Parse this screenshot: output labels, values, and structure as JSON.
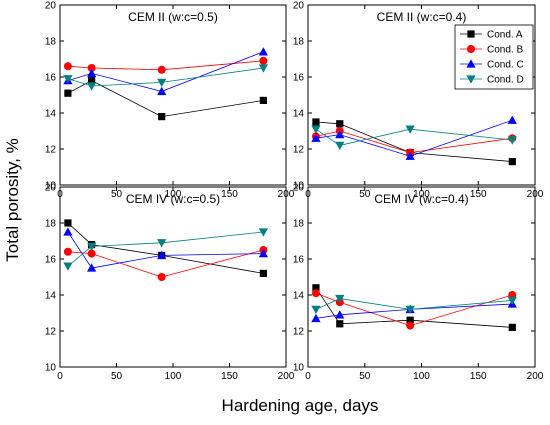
{
  "figure": {
    "ylabel": "Total porosity, %",
    "xlabel": "Hardening age, days"
  },
  "chart_data": [
    {
      "type": "line",
      "title": "CEM II (w:c=0.5)",
      "x": [
        7,
        28,
        90,
        180
      ],
      "xlim": [
        0,
        200
      ],
      "ylim": [
        10,
        20
      ],
      "xticks": [
        0,
        50,
        100,
        150,
        200
      ],
      "yticks": [
        10,
        12,
        14,
        16,
        18,
        20
      ],
      "series": [
        {
          "name": "Cond. A",
          "values": [
            15.1,
            15.8,
            13.8,
            14.7
          ]
        },
        {
          "name": "Cond. B",
          "values": [
            16.6,
            16.5,
            16.4,
            16.9
          ]
        },
        {
          "name": "Cond. C",
          "values": [
            15.8,
            16.2,
            15.2,
            17.4
          ]
        },
        {
          "name": "Cond. D",
          "values": [
            15.9,
            15.5,
            15.7,
            16.5
          ]
        }
      ]
    },
    {
      "type": "line",
      "title": "CEM II (w:c=0.4)",
      "x": [
        7,
        28,
        90,
        180
      ],
      "xlim": [
        0,
        200
      ],
      "ylim": [
        10,
        20
      ],
      "xticks": [
        0,
        50,
        100,
        150,
        200
      ],
      "yticks": [
        10,
        12,
        14,
        16,
        18,
        20
      ],
      "series": [
        {
          "name": "Cond. A",
          "values": [
            13.5,
            13.4,
            11.8,
            11.3
          ]
        },
        {
          "name": "Cond. B",
          "values": [
            12.7,
            13.0,
            11.8,
            12.6
          ]
        },
        {
          "name": "Cond. C",
          "values": [
            12.6,
            12.8,
            11.6,
            13.6
          ]
        },
        {
          "name": "Cond. D",
          "values": [
            13.1,
            12.2,
            13.1,
            12.5
          ]
        }
      ]
    },
    {
      "type": "line",
      "title": "CEM IV (w:c=0.5)",
      "x": [
        7,
        28,
        90,
        180
      ],
      "xlim": [
        0,
        200
      ],
      "ylim": [
        10,
        20
      ],
      "xticks": [
        0,
        50,
        100,
        150,
        200
      ],
      "yticks": [
        10,
        12,
        14,
        16,
        18,
        20
      ],
      "series": [
        {
          "name": "Cond. A",
          "values": [
            18.0,
            16.8,
            16.2,
            15.2
          ]
        },
        {
          "name": "Cond. B",
          "values": [
            16.4,
            16.3,
            15.0,
            16.5
          ]
        },
        {
          "name": "Cond. C",
          "values": [
            17.5,
            15.5,
            16.2,
            16.3
          ]
        },
        {
          "name": "Cond. D",
          "values": [
            15.6,
            16.7,
            16.9,
            17.5
          ]
        }
      ]
    },
    {
      "type": "line",
      "title": "CEM IV (w:c=0.4)",
      "x": [
        7,
        28,
        90,
        180
      ],
      "xlim": [
        0,
        200
      ],
      "ylim": [
        10,
        20
      ],
      "xticks": [
        0,
        50,
        100,
        150,
        200
      ],
      "yticks": [
        10,
        12,
        14,
        16,
        18,
        20
      ],
      "series": [
        {
          "name": "Cond. A",
          "values": [
            14.4,
            12.4,
            12.6,
            12.2
          ]
        },
        {
          "name": "Cond. B",
          "values": [
            14.1,
            13.6,
            12.3,
            14.0
          ]
        },
        {
          "name": "Cond. C",
          "values": [
            12.7,
            12.9,
            13.2,
            13.5
          ]
        },
        {
          "name": "Cond. D",
          "values": [
            13.2,
            13.8,
            13.2,
            13.7
          ]
        }
      ]
    }
  ],
  "legend": {
    "placement": "top-right panel",
    "entries": [
      {
        "label": "Cond. A",
        "color": "#000000",
        "marker": "square"
      },
      {
        "label": "Cond. B",
        "color": "#ff0000",
        "marker": "circle"
      },
      {
        "label": "Cond. C",
        "color": "#0000ff",
        "marker": "triangle-up"
      },
      {
        "label": "Cond. D",
        "color": "#008080",
        "marker": "triangle-down"
      }
    ]
  }
}
